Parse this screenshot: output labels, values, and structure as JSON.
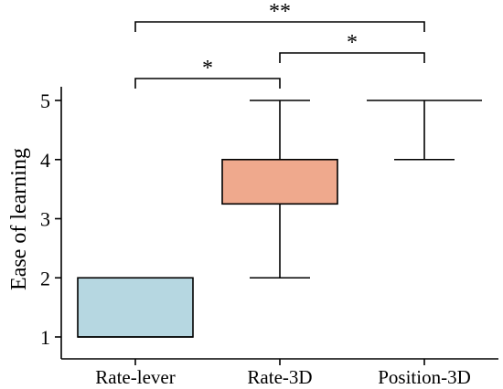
{
  "chart_data": {
    "type": "box",
    "title": "",
    "xlabel": "",
    "ylabel": "Ease of learning",
    "ylim": [
      1,
      5
    ],
    "yticks": [
      1,
      2,
      3,
      4,
      5
    ],
    "grid": false,
    "categories": [
      "Rate-lever",
      "Rate-3D",
      "Position-3D"
    ],
    "boxes": [
      {
        "category": "Rate-lever",
        "min": 1,
        "q1": 1,
        "median": 1,
        "q3": 2,
        "max": 2,
        "color": "#b6d7e1"
      },
      {
        "category": "Rate-3D",
        "min": 2,
        "q1": 3.25,
        "median": 4,
        "q3": 4,
        "max": 5,
        "color": "#efa98d"
      },
      {
        "category": "Position-3D",
        "min": 4,
        "q1": 5,
        "median": 5,
        "q3": 5,
        "max": 5,
        "color": "#ffffff"
      }
    ],
    "significance": [
      {
        "from": "Rate-lever",
        "to": "Rate-3D",
        "label": "*"
      },
      {
        "from": "Rate-3D",
        "to": "Position-3D",
        "label": "*"
      },
      {
        "from": "Rate-lever",
        "to": "Position-3D",
        "label": "**"
      }
    ]
  }
}
